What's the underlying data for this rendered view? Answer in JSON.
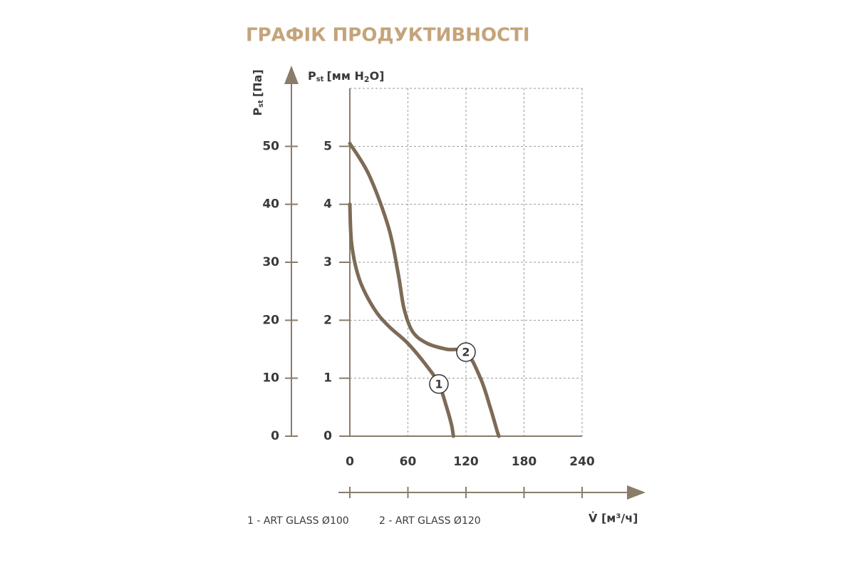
{
  "chart_data": {
    "type": "line",
    "title": "ГРАФІК ПРОДУКТИВНОСТІ",
    "y_label": {
      "symbol": "P",
      "subscript": "st",
      "unit": "[Па]"
    },
    "y2_label": {
      "symbol": "P",
      "subscript": "st",
      "unit_parts": [
        "[мм H",
        "2",
        "O]"
      ]
    },
    "x_label": "V̇ [м³/ч]",
    "xlim": [
      0,
      240
    ],
    "xticks": [
      0,
      60,
      120,
      180,
      240
    ],
    "ylim": [
      0,
      60
    ],
    "yticks": [
      0,
      10,
      20,
      30,
      40,
      50
    ],
    "y2lim": [
      0,
      6
    ],
    "y2ticks": [
      0,
      1,
      2,
      3,
      4,
      5
    ],
    "grid": true,
    "series": [
      {
        "name": "1 - ART GLASS Ø100",
        "marker_label": "1",
        "color": "#7d6b57",
        "x": [
          0,
          2,
          10,
          25,
          40,
          60,
          80,
          92,
          100,
          105,
          107
        ],
        "values": [
          40,
          33,
          27,
          22,
          19,
          16,
          12,
          9,
          5,
          2,
          0
        ]
      },
      {
        "name": "2 - ART GLASS Ø120",
        "marker_label": "2",
        "color": "#7d6b57",
        "x": [
          0,
          20,
          40,
          50,
          56,
          65,
          80,
          100,
          120,
          135,
          145,
          152,
          154
        ],
        "values": [
          50.5,
          45,
          36,
          28,
          22,
          18,
          16,
          15,
          14.5,
          10,
          5,
          1,
          0
        ]
      }
    ]
  }
}
